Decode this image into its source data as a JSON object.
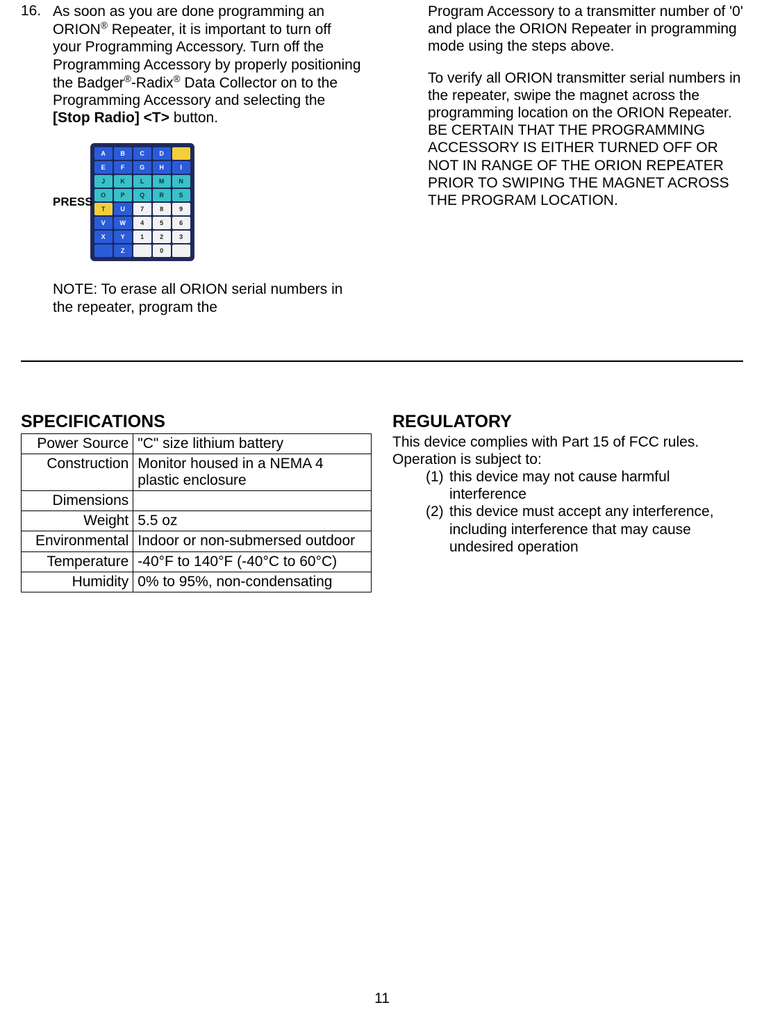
{
  "item16": {
    "number": "16.",
    "para1_pre": "As soon as you are done programming an ORION",
    "para1_mid1": " Repeater, it is important to turn off your Programming Accessory. Turn off the Programming Accessory by properly positioning the Badger",
    "para1_mid2": "-Radix",
    "para1_mid3": " Data Collector on to the Programming Accessory and selecting the ",
    "para1_bold": "[Stop Radio] <T>",
    "para1_end": " button.",
    "press_label": "PRESS",
    "note": "NOTE: To erase all ORION serial numbers in the repeater, program the",
    "right_para1": "Program Accessory to a transmitter number of '0' and place the ORION Repeater in programming mode using the steps above.",
    "right_para2": "To verify all ORION transmitter serial numbers in the repeater, swipe the magnet across the programming location on the ORION Repeater.",
    "right_caps": "BE CERTAIN THAT THE PROGRAMMING ACCESSORY IS EITHER TURNED OFF OR NOT IN RANGE OF THE ORION REPEATER PRIOR TO SWIPING THE MAGNET ACROSS THE PROGRAM LOCATION."
  },
  "specs": {
    "heading": "SPECIFICATIONS",
    "rows": [
      {
        "label": "Power Source",
        "value": "\"C\" size lithium battery"
      },
      {
        "label": "Construction",
        "value": "Monitor housed in a NEMA 4 plastic enclosure"
      },
      {
        "label": "Dimensions",
        "value": ""
      },
      {
        "label": "Weight",
        "value": "5.5 oz"
      },
      {
        "label": "Environmental",
        "value": "Indoor or non-submersed outdoor"
      },
      {
        "label": "Temperature",
        "value": "-40°F to 140°F (-40°C to 60°C)"
      },
      {
        "label": "Humidity",
        "value": "0% to 95%, non-condensating"
      }
    ]
  },
  "regulatory": {
    "heading": "REGULATORY",
    "intro": "This device complies with Part 15 of FCC rules. Operation is subject to:",
    "items": [
      {
        "num": "(1)",
        "text": "this device may not cause harmful interference"
      },
      {
        "num": "(2)",
        "text": "this device must accept any interference, including interference that may cause undesired operation"
      }
    ]
  },
  "keypad": {
    "rows": [
      [
        {
          "t": "A",
          "c": "kp-blue"
        },
        {
          "t": "B",
          "c": "kp-blue"
        },
        {
          "t": "C",
          "c": "kp-blue"
        },
        {
          "t": "D",
          "c": "kp-blue"
        },
        {
          "t": "",
          "c": "kp-yellow"
        }
      ],
      [
        {
          "t": "E",
          "c": "kp-blue"
        },
        {
          "t": "F",
          "c": "kp-blue"
        },
        {
          "t": "G",
          "c": "kp-blue"
        },
        {
          "t": "H",
          "c": "kp-blue"
        },
        {
          "t": "I",
          "c": "kp-blue"
        }
      ],
      [
        {
          "t": "J",
          "c": "kp-teal"
        },
        {
          "t": "K",
          "c": "kp-teal"
        },
        {
          "t": "L",
          "c": "kp-teal"
        },
        {
          "t": "M",
          "c": "kp-teal"
        },
        {
          "t": "N",
          "c": "kp-teal"
        }
      ],
      [
        {
          "t": "O",
          "c": "kp-teal"
        },
        {
          "t": "P",
          "c": "kp-teal"
        },
        {
          "t": "Q",
          "c": "kp-teal"
        },
        {
          "t": "R",
          "c": "kp-teal"
        },
        {
          "t": "S",
          "c": "kp-teal"
        }
      ],
      [
        {
          "t": "T",
          "c": "kp-yellow"
        },
        {
          "t": "U",
          "c": "kp-blue"
        },
        {
          "t": "7",
          "c": "kp-white"
        },
        {
          "t": "8",
          "c": "kp-white"
        },
        {
          "t": "9",
          "c": "kp-white"
        }
      ],
      [
        {
          "t": "V",
          "c": "kp-blue"
        },
        {
          "t": "W",
          "c": "kp-blue"
        },
        {
          "t": "4",
          "c": "kp-white"
        },
        {
          "t": "5",
          "c": "kp-white"
        },
        {
          "t": "6",
          "c": "kp-white"
        }
      ],
      [
        {
          "t": "X",
          "c": "kp-blue"
        },
        {
          "t": "Y",
          "c": "kp-blue"
        },
        {
          "t": "1",
          "c": "kp-white"
        },
        {
          "t": "2",
          "c": "kp-white"
        },
        {
          "t": "3",
          "c": "kp-white"
        }
      ],
      [
        {
          "t": "",
          "c": "kp-blue"
        },
        {
          "t": "Z",
          "c": "kp-blue"
        },
        {
          "t": "",
          "c": "kp-white"
        },
        {
          "t": "0",
          "c": "kp-white"
        },
        {
          "t": "",
          "c": "kp-white"
        }
      ]
    ]
  },
  "page_number": "11"
}
